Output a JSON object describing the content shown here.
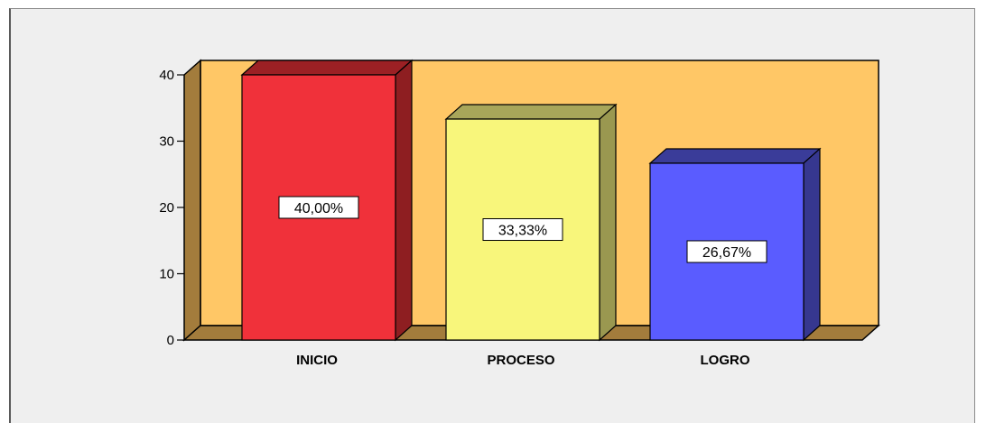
{
  "chart_data": {
    "type": "bar",
    "categories": [
      "INICIO",
      "PROCESO",
      "LOGRO"
    ],
    "values": [
      40.0,
      33.33,
      26.67
    ],
    "data_labels": [
      "40,00%",
      "33,33%",
      "26,67%"
    ],
    "title": "",
    "xlabel": "",
    "ylabel": "",
    "ylim": [
      0,
      40
    ],
    "yticks": [
      "0",
      "10",
      "20",
      "30",
      "40"
    ],
    "grid": false,
    "legend": "none",
    "three_d": true,
    "colors": {
      "bars": [
        "#f0313a",
        "#f8f67b",
        "#5a5cff"
      ],
      "bar_sides": [
        "#8e1e21",
        "#9a9850",
        "#36378f"
      ],
      "bar_tops": [
        "#9c2024",
        "#a8a65a",
        "#3a3c99"
      ],
      "back_wall": "#ffc766",
      "side_wall": "#a37c3c",
      "floor": "#a37c3c",
      "background": "#efefef"
    }
  }
}
